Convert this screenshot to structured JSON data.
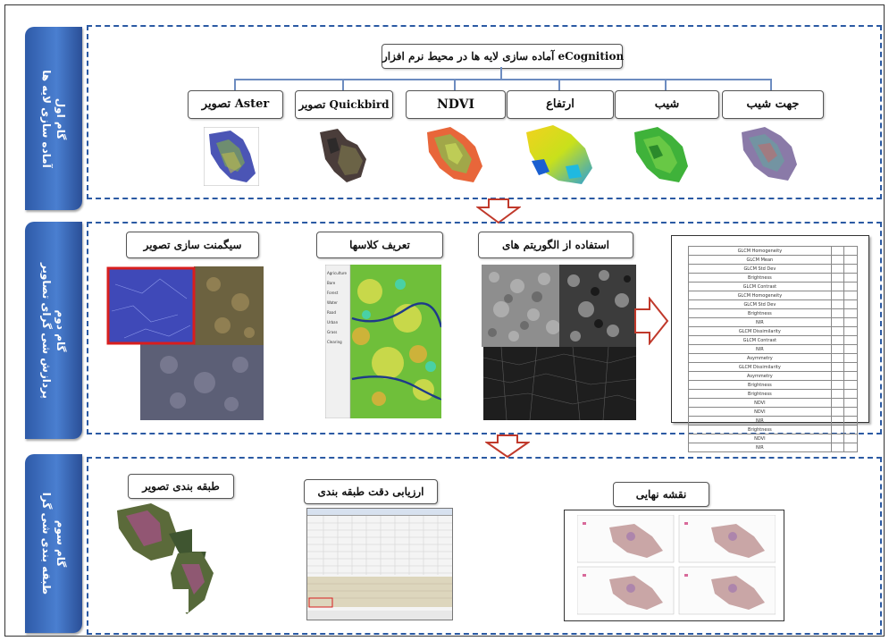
{
  "stages": [
    {
      "tab_text": "گام اول\nآماده سازی لایه ها"
    },
    {
      "tab_text": "گام دوم\nپردازش شی گرای تصاویر"
    },
    {
      "tab_text": "گام سوم\nطبقه بندی شی گرا"
    }
  ],
  "stage1": {
    "header": "آماده سازی لایه ها در محیط نرم افزار eCognition",
    "layers": [
      "تصویر Aster",
      "تصویر Quickbird",
      "NDVI",
      "ارتفاع",
      "شیب",
      "جهت شیب"
    ]
  },
  "stage2": {
    "labels": [
      "سیگمنت سازی تصویر",
      "تعریف کلاسها",
      "استفاده از الگوریتم های"
    ],
    "class_list": [
      "Agriculture",
      "Bare",
      "Forest",
      "Water",
      "Road",
      "Urban",
      "Grass",
      "Clearing"
    ],
    "table_rows": [
      [
        "GLCM Homogeneity",
        "",
        ""
      ],
      [
        "GLCM Mean",
        "",
        ""
      ],
      [
        "GLCM Std Dev",
        "",
        ""
      ],
      [
        "Brightness",
        "",
        ""
      ],
      [
        "GLCM Contrast",
        "",
        ""
      ],
      [
        "GLCM Homogeneity",
        "",
        ""
      ],
      [
        "GLCM Std Dev",
        "",
        ""
      ],
      [
        "Brightness",
        "",
        ""
      ],
      [
        "NIR",
        "",
        ""
      ],
      [
        "GLCM Dissimilarity",
        "",
        ""
      ],
      [
        "GLCM Contrast",
        "",
        ""
      ],
      [
        "NIR",
        "",
        ""
      ],
      [
        "Asymmetry",
        "",
        ""
      ],
      [
        "GLCM Dissimilarity",
        "",
        ""
      ],
      [
        "Asymmetry",
        "",
        ""
      ],
      [
        "Brightness",
        "",
        ""
      ],
      [
        "Brightness",
        "",
        ""
      ],
      [
        "NDVI",
        "",
        ""
      ],
      [
        "NDVI",
        "",
        ""
      ],
      [
        "NIR",
        "",
        ""
      ],
      [
        "Brightness",
        "",
        ""
      ],
      [
        "NDVI",
        "",
        ""
      ],
      [
        "NIR",
        "",
        ""
      ]
    ]
  },
  "stage3": {
    "labels": [
      "طبقه بندی تصویر",
      "ارزیابی دقت طبقه بندی",
      "نقشه نهایی"
    ]
  },
  "colors": {
    "accent": "#2b5aa3",
    "arrow": "#c0392b"
  }
}
